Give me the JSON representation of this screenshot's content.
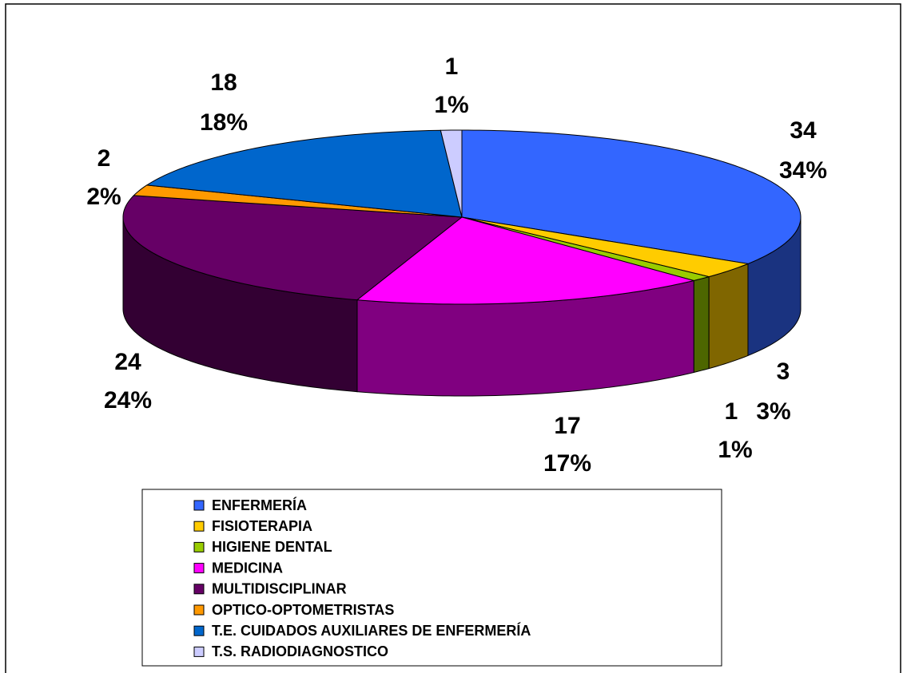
{
  "chart_data": {
    "type": "pie",
    "categories": [
      "ENFERMERÍA",
      "FISIOTERAPIA",
      "HIGIENE DENTAL",
      "MEDICINA",
      "MULTIDISCIPLINAR",
      "OPTICO-OPTOMETRISTAS",
      "T.E. CUIDADOS AUXILIARES DE ENFERMERÍA",
      "T.S. RADIODIAGNOSTICO"
    ],
    "values": [
      34,
      3,
      1,
      17,
      24,
      2,
      18,
      1
    ],
    "value_labels": [
      "34%",
      "3%",
      "1%",
      "17%",
      "24%",
      "2%",
      "18%",
      "1%"
    ],
    "colors": [
      "#3366ff",
      "#ffcc00",
      "#99cc00",
      "#ff00ff",
      "#660066",
      "#ff9900",
      "#0066cc",
      "#ccccff"
    ],
    "legend": "bottom"
  }
}
